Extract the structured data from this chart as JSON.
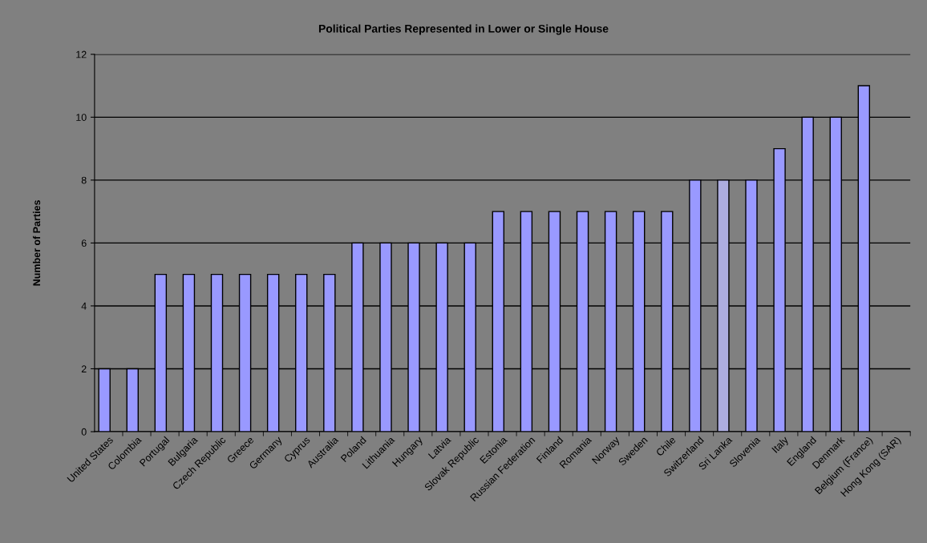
{
  "chart_data": {
    "type": "bar",
    "title": "Political Parties Represented in Lower or Single House",
    "ylabel": "Number of Parties",
    "categories": [
      "United States",
      "Colombia",
      "Portugal",
      "Bulgaria",
      "Czech Republic",
      "Greece",
      "Germany",
      "Cyprus",
      "Australia",
      "Poland",
      "Lithuania",
      "Hungary",
      "Latvia",
      "Slovak Republic",
      "Estonia",
      "Russian Federation",
      "Finland",
      "Romania",
      "Norway",
      "Sweden",
      "Chile",
      "Switzerland",
      "Sri Lanka",
      "Slovenia",
      "Italy",
      "England",
      "Denmark",
      "Belgium (France)",
      "Hong Kong (SAR)"
    ],
    "values": [
      2,
      2,
      5,
      5,
      5,
      5,
      5,
      5,
      5,
      6,
      6,
      6,
      6,
      6,
      7,
      7,
      7,
      7,
      7,
      7,
      7,
      8,
      8,
      8,
      9,
      10,
      10,
      11,
      null
    ],
    "colors": [
      "#9999ff",
      "#9999ff",
      "#9999ff",
      "#9999ff",
      "#9999ff",
      "#9999ff",
      "#9999ff",
      "#9999ff",
      "#9999ff",
      "#9999ff",
      "#9999ff",
      "#9999ff",
      "#9999ff",
      "#9999ff",
      "#9999ff",
      "#9999ff",
      "#9999ff",
      "#9999ff",
      "#9999ff",
      "#9999ff",
      "#9999ff",
      "#9999ff",
      "#adaddf",
      "#9999ff",
      "#9999ff",
      "#9999ff",
      "#9999ff",
      "#9999ff",
      "#9999ff"
    ],
    "ylim": [
      0,
      12
    ],
    "yticks": [
      0,
      2,
      4,
      6,
      8,
      10,
      12
    ],
    "grid": "y",
    "legend": false
  }
}
